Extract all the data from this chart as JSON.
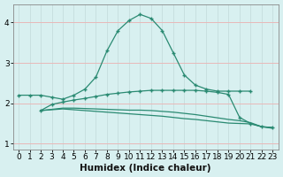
{
  "xlabel": "Humidex (Indice chaleur)",
  "x_values": [
    0,
    1,
    2,
    3,
    4,
    5,
    6,
    7,
    8,
    9,
    10,
    11,
    12,
    13,
    14,
    15,
    16,
    17,
    18,
    19,
    20,
    21,
    22,
    23
  ],
  "line1": [
    2.2,
    2.2,
    2.2,
    2.15,
    2.1,
    2.2,
    2.35,
    2.65,
    3.3,
    3.8,
    4.05,
    4.2,
    4.1,
    3.8,
    3.25,
    2.7,
    2.45,
    2.35,
    2.3,
    2.3,
    2.3,
    2.3,
    null,
    null
  ],
  "line2": [
    null,
    null,
    1.82,
    1.97,
    2.03,
    2.08,
    2.12,
    2.17,
    2.22,
    2.25,
    2.28,
    2.3,
    2.32,
    2.32,
    2.32,
    2.32,
    2.32,
    2.3,
    2.27,
    2.22,
    1.65,
    1.5,
    1.42,
    1.4
  ],
  "line3": [
    null,
    null,
    1.82,
    1.85,
    1.88,
    1.88,
    1.87,
    1.86,
    1.85,
    1.84,
    1.83,
    1.83,
    1.82,
    1.8,
    1.78,
    1.75,
    1.72,
    1.68,
    1.64,
    1.6,
    1.57,
    1.52,
    1.42,
    1.4
  ],
  "line4": [
    null,
    null,
    1.82,
    1.84,
    1.86,
    1.84,
    1.82,
    1.8,
    1.78,
    1.76,
    1.74,
    1.72,
    1.7,
    1.68,
    1.65,
    1.62,
    1.6,
    1.57,
    1.54,
    1.51,
    1.5,
    1.49,
    1.42,
    1.38
  ],
  "line_color": "#2a8a72",
  "bg_color": "#d8f0f0",
  "grid_color_h": "#e8b8b8",
  "grid_color_v": "#c8e0e0",
  "ylim": [
    0.85,
    4.45
  ],
  "yticks": [
    1,
    2,
    3,
    4
  ],
  "xticks": [
    0,
    1,
    2,
    3,
    4,
    5,
    6,
    7,
    8,
    9,
    10,
    11,
    12,
    13,
    14,
    15,
    16,
    17,
    18,
    19,
    20,
    21,
    22,
    23
  ],
  "tick_fontsize": 6.5,
  "xlabel_fontsize": 7.5
}
